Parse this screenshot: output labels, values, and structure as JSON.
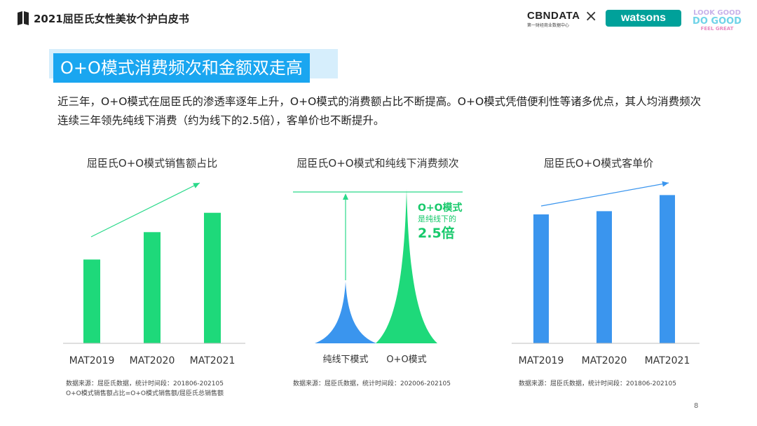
{
  "header": {
    "title": "2021屈臣氏女性美妆个护白皮书",
    "logo_cbn": "CBNDATA",
    "logo_cbn_sub": "第一财经商业数据中心",
    "logo_x": "×",
    "logo_watsons": "watsons",
    "logo_look_lines": [
      "LOOK GOOD",
      "DO GOOD",
      "FEEL GREAT"
    ]
  },
  "main": {
    "title": "O+O模式消费频次和金额双走高",
    "body": "近三年，O+O模式在屈臣氏的渗透率逐年上升，O+O模式的消费额占比不断提高。O+O模式凭借便利性等诸多优点，其人均消费频次连续三年领先纯线下消费（约为线下的2.5倍），客单价也不断提升。"
  },
  "colors": {
    "green": "#1ed97a",
    "blue": "#3a95ee",
    "title_bg": "#1aa6f0",
    "annotation_green": "#17c96b"
  },
  "chart_data": [
    {
      "type": "bar",
      "title": "屈臣氏O+O模式销售额占比",
      "categories": [
        "MAT2019",
        "MAT2020",
        "MAT2021"
      ],
      "values": [
        0.52,
        0.69,
        0.81
      ],
      "note": "values are relative heights; no axis labels shown",
      "source_lines": [
        "数据来源：屈臣氏数据，统计时间段：201806-202105",
        "O+O模式销售额占比=O+O模式销售额/屈臣氏总销售额"
      ]
    },
    {
      "type": "area",
      "title": "屈臣氏O+O模式和纯线下消费频次",
      "categories": [
        "纯线下模式",
        "O+O模式"
      ],
      "values": [
        1,
        2.5
      ],
      "annotation": {
        "line1": "O+O模式",
        "line2": "是纯线下的",
        "line3": "2.5倍"
      },
      "source_lines": [
        "数据来源：屈臣氏数据，统计时间段：202006-202105"
      ]
    },
    {
      "type": "bar",
      "title": "屈臣氏O+O模式客单价",
      "categories": [
        "MAT2019",
        "MAT2020",
        "MAT2021"
      ],
      "values": [
        0.8,
        0.82,
        0.92
      ],
      "note": "values are relative heights; no axis labels shown",
      "source_lines": [
        "数据来源：屈臣氏数据，统计时间段：201806-202105"
      ]
    }
  ],
  "page_number": "8"
}
